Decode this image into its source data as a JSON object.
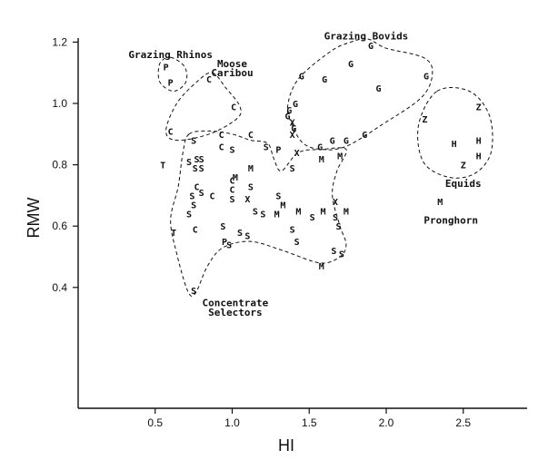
{
  "chart_data": {
    "type": "scatter",
    "title": "",
    "xlabel": "HI",
    "ylabel": "RMW",
    "xlim": [
      0,
      2.9
    ],
    "ylim": [
      0.3,
      1.22
    ],
    "x_ticks": [
      "0.5",
      "1.0",
      "1.5",
      "2.0",
      "2.5"
    ],
    "y_ticks": [
      "0.4",
      "0.6",
      "0.8",
      "1.0",
      "1.2"
    ],
    "grid": false,
    "group_labels": [
      {
        "text": "Grazing Rhinos",
        "x": 0.6,
        "y": 1.16
      },
      {
        "text": "Moose",
        "x": 1.0,
        "y": 1.13
      },
      {
        "text": "Caribou",
        "x": 1.0,
        "y": 1.1
      },
      {
        "text": "Grazing Bovids",
        "x": 1.87,
        "y": 1.22
      },
      {
        "text": "Equids",
        "x": 2.5,
        "y": 0.74
      },
      {
        "text": "Pronghorn",
        "x": 2.42,
        "y": 0.62
      },
      {
        "text": "Concentrate",
        "x": 1.02,
        "y": 0.35
      },
      {
        "text": "Selectors",
        "x": 1.02,
        "y": 0.32
      }
    ],
    "points": [
      {
        "s": "P",
        "x": 0.57,
        "y": 1.12
      },
      {
        "s": "P",
        "x": 0.6,
        "y": 1.07
      },
      {
        "s": "C",
        "x": 0.85,
        "y": 1.08
      },
      {
        "s": "C",
        "x": 1.01,
        "y": 0.99
      },
      {
        "s": "C",
        "x": 0.6,
        "y": 0.91
      },
      {
        "s": "G",
        "x": 1.9,
        "y": 1.19
      },
      {
        "s": "G",
        "x": 1.77,
        "y": 1.13
      },
      {
        "s": "G",
        "x": 1.45,
        "y": 1.09
      },
      {
        "s": "G",
        "x": 1.6,
        "y": 1.08
      },
      {
        "s": "G",
        "x": 1.95,
        "y": 1.05
      },
      {
        "s": "G",
        "x": 2.26,
        "y": 1.09
      },
      {
        "s": "G",
        "x": 1.41,
        "y": 1.0
      },
      {
        "s": "G",
        "x": 1.37,
        "y": 0.98
      },
      {
        "s": "G",
        "x": 1.36,
        "y": 0.96
      },
      {
        "s": "G",
        "x": 1.4,
        "y": 0.92
      },
      {
        "s": "G",
        "x": 1.65,
        "y": 0.88
      },
      {
        "s": "G",
        "x": 1.74,
        "y": 0.88
      },
      {
        "s": "G",
        "x": 1.86,
        "y": 0.9
      },
      {
        "s": "G",
        "x": 1.57,
        "y": 0.86
      },
      {
        "s": "Z",
        "x": 2.6,
        "y": 0.99
      },
      {
        "s": "Z",
        "x": 2.25,
        "y": 0.95
      },
      {
        "s": "Z",
        "x": 2.5,
        "y": 0.8
      },
      {
        "s": "H",
        "x": 2.44,
        "y": 0.87
      },
      {
        "s": "H",
        "x": 2.6,
        "y": 0.88
      },
      {
        "s": "H",
        "x": 2.6,
        "y": 0.83
      },
      {
        "s": "M",
        "x": 2.35,
        "y": 0.68
      },
      {
        "s": "T",
        "x": 0.55,
        "y": 0.8
      },
      {
        "s": "T",
        "x": 0.62,
        "y": 0.58
      },
      {
        "s": "S",
        "x": 0.75,
        "y": 0.88
      },
      {
        "s": "S",
        "x": 0.72,
        "y": 0.81
      },
      {
        "s": "S",
        "x": 0.77,
        "y": 0.82
      },
      {
        "s": "S",
        "x": 0.8,
        "y": 0.82
      },
      {
        "s": "S",
        "x": 0.76,
        "y": 0.79
      },
      {
        "s": "S",
        "x": 0.8,
        "y": 0.79
      },
      {
        "s": "S",
        "x": 0.74,
        "y": 0.7
      },
      {
        "s": "S",
        "x": 0.8,
        "y": 0.71
      },
      {
        "s": "S",
        "x": 0.75,
        "y": 0.67
      },
      {
        "s": "S",
        "x": 0.72,
        "y": 0.64
      },
      {
        "s": "S",
        "x": 1.0,
        "y": 0.85
      },
      {
        "s": "S",
        "x": 1.22,
        "y": 0.86
      },
      {
        "s": "S",
        "x": 1.12,
        "y": 0.73
      },
      {
        "s": "S",
        "x": 1.3,
        "y": 0.7
      },
      {
        "s": "S",
        "x": 1.0,
        "y": 0.69
      },
      {
        "s": "S",
        "x": 1.15,
        "y": 0.65
      },
      {
        "s": "S",
        "x": 1.2,
        "y": 0.64
      },
      {
        "s": "S",
        "x": 1.52,
        "y": 0.63
      },
      {
        "s": "S",
        "x": 1.67,
        "y": 0.63
      },
      {
        "s": "S",
        "x": 1.39,
        "y": 0.59
      },
      {
        "s": "S",
        "x": 1.69,
        "y": 0.6
      },
      {
        "s": "S",
        "x": 0.94,
        "y": 0.6
      },
      {
        "s": "S",
        "x": 1.05,
        "y": 0.58
      },
      {
        "s": "S",
        "x": 1.1,
        "y": 0.57
      },
      {
        "s": "S",
        "x": 0.98,
        "y": 0.54
      },
      {
        "s": "S",
        "x": 1.42,
        "y": 0.55
      },
      {
        "s": "S",
        "x": 1.66,
        "y": 0.52
      },
      {
        "s": "S",
        "x": 1.71,
        "y": 0.51
      },
      {
        "s": "S",
        "x": 1.39,
        "y": 0.79
      },
      {
        "s": "S",
        "x": 0.75,
        "y": 0.39
      },
      {
        "s": "C",
        "x": 0.93,
        "y": 0.9
      },
      {
        "s": "C",
        "x": 1.12,
        "y": 0.9
      },
      {
        "s": "C",
        "x": 0.93,
        "y": 0.86
      },
      {
        "s": "C",
        "x": 1.0,
        "y": 0.75
      },
      {
        "s": "C",
        "x": 0.77,
        "y": 0.73
      },
      {
        "s": "C",
        "x": 1.0,
        "y": 0.72
      },
      {
        "s": "C",
        "x": 0.87,
        "y": 0.7
      },
      {
        "s": "C",
        "x": 0.76,
        "y": 0.59
      },
      {
        "s": "M",
        "x": 1.12,
        "y": 0.79
      },
      {
        "s": "M",
        "x": 1.02,
        "y": 0.76
      },
      {
        "s": "M",
        "x": 1.58,
        "y": 0.82
      },
      {
        "s": "M",
        "x": 1.7,
        "y": 0.83
      },
      {
        "s": "M",
        "x": 1.33,
        "y": 0.67
      },
      {
        "s": "M",
        "x": 1.29,
        "y": 0.64
      },
      {
        "s": "M",
        "x": 1.43,
        "y": 0.65
      },
      {
        "s": "M",
        "x": 1.59,
        "y": 0.65
      },
      {
        "s": "M",
        "x": 1.74,
        "y": 0.65
      },
      {
        "s": "M",
        "x": 1.58,
        "y": 0.47
      },
      {
        "s": "X",
        "x": 1.39,
        "y": 0.94
      },
      {
        "s": "X",
        "x": 1.39,
        "y": 0.9
      },
      {
        "s": "X",
        "x": 1.42,
        "y": 0.84
      },
      {
        "s": "X",
        "x": 1.1,
        "y": 0.69
      },
      {
        "s": "X",
        "x": 1.67,
        "y": 0.68
      },
      {
        "s": "P",
        "x": 1.3,
        "y": 0.85
      },
      {
        "s": "P",
        "x": 0.95,
        "y": 0.55
      }
    ],
    "hulls": [
      {
        "name": "rhinos",
        "pts": [
          [
            0.6,
            1.15
          ],
          [
            0.69,
            1.12
          ],
          [
            0.7,
            1.07
          ],
          [
            0.62,
            1.04
          ],
          [
            0.53,
            1.07
          ],
          [
            0.53,
            1.13
          ]
        ]
      },
      {
        "name": "moose",
        "pts": [
          [
            0.87,
            1.1
          ],
          [
            0.96,
            1.05
          ],
          [
            1.05,
            0.99
          ],
          [
            1.03,
            0.95
          ],
          [
            0.85,
            0.9
          ],
          [
            0.64,
            0.88
          ],
          [
            0.57,
            0.91
          ],
          [
            0.64,
            1.0
          ],
          [
            0.77,
            1.07
          ]
        ]
      },
      {
        "name": "bovids",
        "pts": [
          [
            1.88,
            1.21
          ],
          [
            2.0,
            1.18
          ],
          [
            2.24,
            1.15
          ],
          [
            2.3,
            1.1
          ],
          [
            2.23,
            1.02
          ],
          [
            1.97,
            0.93
          ],
          [
            1.74,
            0.86
          ],
          [
            1.58,
            0.85
          ],
          [
            1.46,
            0.87
          ],
          [
            1.39,
            0.93
          ],
          [
            1.36,
            0.99
          ],
          [
            1.43,
            1.08
          ],
          [
            1.64,
            1.17
          ],
          [
            1.77,
            1.2
          ]
        ]
      },
      {
        "name": "equids",
        "pts": [
          [
            2.33,
            1.04
          ],
          [
            2.54,
            1.04
          ],
          [
            2.67,
            0.96
          ],
          [
            2.68,
            0.84
          ],
          [
            2.57,
            0.77
          ],
          [
            2.4,
            0.76
          ],
          [
            2.24,
            0.81
          ],
          [
            2.21,
            0.93
          ]
        ]
      },
      {
        "name": "concentrate",
        "pts": [
          [
            0.72,
            0.9
          ],
          [
            0.85,
            0.91
          ],
          [
            1.0,
            0.9
          ],
          [
            1.12,
            0.88
          ],
          [
            1.23,
            0.87
          ],
          [
            1.27,
            0.82
          ],
          [
            1.32,
            0.78
          ],
          [
            1.43,
            0.84
          ],
          [
            1.58,
            0.85
          ],
          [
            1.74,
            0.85
          ],
          [
            1.68,
            0.78
          ],
          [
            1.65,
            0.7
          ],
          [
            1.7,
            0.6
          ],
          [
            1.74,
            0.54
          ],
          [
            1.7,
            0.5
          ],
          [
            1.57,
            0.48
          ],
          [
            1.33,
            0.52
          ],
          [
            1.12,
            0.55
          ],
          [
            0.94,
            0.53
          ],
          [
            0.84,
            0.47
          ],
          [
            0.76,
            0.38
          ],
          [
            0.71,
            0.39
          ],
          [
            0.64,
            0.51
          ],
          [
            0.6,
            0.62
          ],
          [
            0.65,
            0.73
          ],
          [
            0.68,
            0.84
          ]
        ]
      }
    ]
  }
}
